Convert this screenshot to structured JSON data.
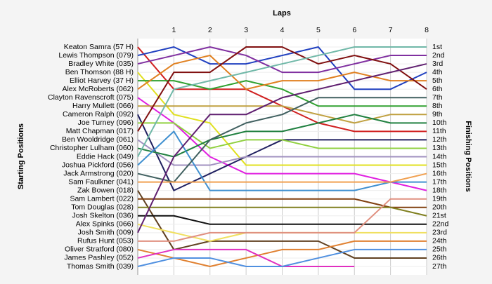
{
  "chart_data": {
    "type": "line",
    "title": "Laps",
    "y_label": "Starting Positions",
    "y2_label": "Finishing Positions",
    "x": [
      0,
      1,
      2,
      3,
      4,
      5,
      6,
      7,
      8
    ],
    "xlim": [
      0,
      8
    ],
    "xticks": [
      1,
      2,
      3,
      4,
      5,
      6,
      7,
      8
    ],
    "ylim": [
      1,
      27
    ],
    "invert_y": true,
    "grid": true,
    "yticks": [
      {
        "value": 1,
        "label": "1st"
      },
      {
        "value": 2,
        "label": "2nd"
      },
      {
        "value": 3,
        "label": "3rd"
      },
      {
        "value": 4,
        "label": "4th"
      },
      {
        "value": 5,
        "label": "5th"
      },
      {
        "value": 6,
        "label": "6th"
      },
      {
        "value": 7,
        "label": "7th"
      },
      {
        "value": 8,
        "label": "8th"
      },
      {
        "value": 9,
        "label": "9th"
      },
      {
        "value": 10,
        "label": "10th"
      },
      {
        "value": 11,
        "label": "11th"
      },
      {
        "value": 12,
        "label": "12th"
      },
      {
        "value": 13,
        "label": "13th"
      },
      {
        "value": 14,
        "label": "14th"
      },
      {
        "value": 15,
        "label": "15th"
      },
      {
        "value": 16,
        "label": "16th"
      },
      {
        "value": 17,
        "label": "17th"
      },
      {
        "value": 18,
        "label": "18th"
      },
      {
        "value": 19,
        "label": "19th"
      },
      {
        "value": 20,
        "label": "20th"
      },
      {
        "value": 21,
        "label": "21st"
      },
      {
        "value": 22,
        "label": "22nd"
      },
      {
        "value": 23,
        "label": "23rd"
      },
      {
        "value": 24,
        "label": "24th"
      },
      {
        "value": 25,
        "label": "25th"
      },
      {
        "value": 26,
        "label": "26th"
      },
      {
        "value": 27,
        "label": "27th"
      }
    ],
    "series": [
      {
        "name": "Keaton Samra (57 H)",
        "color": "#d02020",
        "values": [
          1,
          6,
          6,
          6,
          8,
          10,
          11,
          11,
          11
        ]
      },
      {
        "name": "Lewis Thompson (079)",
        "color": "#2040c0",
        "values": [
          2,
          1,
          3,
          3,
          2,
          1,
          6,
          6,
          4
        ]
      },
      {
        "name": "Bradley White (035)",
        "color": "#8030a0",
        "values": [
          3,
          2,
          1,
          2,
          4,
          4,
          3,
          2,
          2
        ]
      },
      {
        "name": "Ben Thomson (88 H)",
        "color": "#e0e020",
        "values": [
          4,
          9,
          10,
          15,
          15,
          15,
          15,
          15,
          15
        ]
      },
      {
        "name": "Elliot Harvey (37 H)",
        "color": "#30a030",
        "values": [
          5,
          5,
          6,
          5,
          6,
          8,
          8,
          8,
          8
        ]
      },
      {
        "name": "Alex McRoberts (062)",
        "color": "#e08020",
        "values": [
          6,
          3,
          2,
          6,
          5,
          5,
          4,
          5,
          5
        ]
      },
      {
        "name": "Clayton Ravenscroft (075)",
        "color": "#e020e0",
        "values": [
          7,
          10,
          14,
          16,
          16,
          16,
          16,
          17,
          18
        ]
      },
      {
        "name": "Harry Mullett (066)",
        "color": "#c0a040",
        "values": [
          8,
          8,
          8,
          8,
          8,
          9,
          10,
          9,
          9
        ]
      },
      {
        "name": "Cameron Ralph (092)",
        "color": "#202060",
        "values": [
          9,
          18,
          16,
          14,
          12,
          12,
          12,
          12,
          12
        ]
      },
      {
        "name": "Joe Turney (096)",
        "color": "#90d040",
        "values": [
          10,
          10,
          13,
          12,
          12,
          13,
          13,
          13,
          13
        ]
      },
      {
        "name": "Matt Chapman (017)",
        "color": "#801010",
        "values": [
          11,
          4,
          4,
          1,
          1,
          3,
          2,
          3,
          6
        ]
      },
      {
        "name": "Ben Wooldridge (061)",
        "color": "#a090c0",
        "values": [
          12,
          15,
          15,
          14,
          14,
          14,
          14,
          14,
          14
        ]
      },
      {
        "name": "Christopher Lulham (060)",
        "color": "#208040",
        "values": [
          13,
          14,
          12,
          11,
          11,
          10,
          9,
          10,
          10
        ]
      },
      {
        "name": "Eddie Hack (049)",
        "color": "#70b8a8",
        "values": [
          14,
          6,
          5,
          4,
          3,
          2,
          1,
          1,
          1
        ]
      },
      {
        "name": "Joshua Pickford (056)",
        "color": "#4090d0",
        "values": [
          15,
          11,
          18,
          18,
          18,
          18,
          18,
          17,
          17
        ]
      },
      {
        "name": "Jack Armstrong (020)",
        "color": "#406060",
        "values": [
          16,
          17,
          12,
          10,
          9,
          7,
          7,
          7,
          7
        ]
      },
      {
        "name": "Sam Faulkner (041)",
        "color": "#f0a050",
        "values": [
          17,
          17,
          17,
          17,
          17,
          17,
          17,
          17,
          16
        ]
      },
      {
        "name": "Zak Bowen (018)",
        "color": "#604020",
        "values": [
          18,
          25,
          24,
          24,
          24,
          24,
          26,
          26,
          26
        ]
      },
      {
        "name": "Sam Lambert (022)",
        "color": "#804010",
        "values": [
          19,
          19,
          19,
          19,
          19,
          19,
          19,
          20,
          20
        ]
      },
      {
        "name": "Tom Douglas (028)",
        "color": "#808020",
        "values": [
          20,
          20,
          20,
          20,
          20,
          20,
          20,
          20,
          21
        ]
      },
      {
        "name": "Josh Skelton (036)",
        "color": "#101010",
        "values": [
          21,
          21,
          22,
          22,
          22,
          22,
          22,
          22,
          22
        ]
      },
      {
        "name": "Alex Spinks (066)",
        "color": "#f0e060",
        "values": [
          22,
          23,
          24,
          23,
          23,
          23,
          23,
          23,
          23
        ]
      },
      {
        "name": "Josh Smith (009)",
        "color": "#602070",
        "values": [
          23,
          14,
          9,
          9,
          7,
          6,
          5,
          4,
          3
        ]
      },
      {
        "name": "Rufus Hunt (053)",
        "color": "#e09080",
        "values": [
          24,
          24,
          23,
          23,
          23,
          23,
          23,
          19,
          19
        ]
      },
      {
        "name": "Oliver Stratford (080)",
        "color": "#e08030",
        "values": [
          25,
          26,
          27,
          26,
          25,
          25,
          24,
          24,
          24
        ]
      },
      {
        "name": "James Pashley (052)",
        "color": "#e030c0",
        "values": [
          26,
          25,
          25,
          25,
          27,
          27,
          27,
          null,
          null
        ]
      },
      {
        "name": "Thomas Smith (039)",
        "color": "#5090e0",
        "values": [
          27,
          26,
          26,
          27,
          27,
          26,
          25,
          25,
          25
        ]
      }
    ]
  }
}
